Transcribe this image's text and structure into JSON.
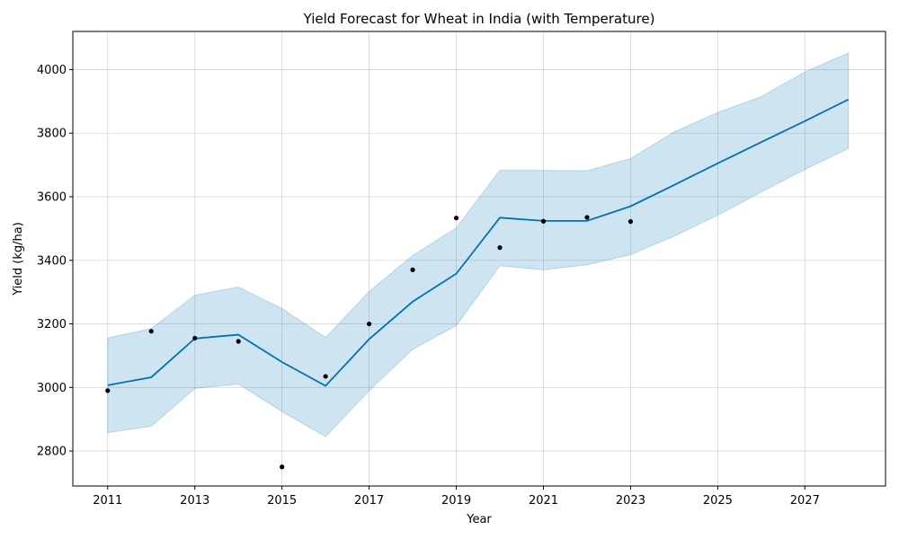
{
  "chart_data": {
    "type": "line",
    "title": "Yield Forecast for Wheat in India (with Temperature)",
    "xlabel": "Year",
    "ylabel": "Yield (kg/ha)",
    "xlim": [
      2010.2,
      2028.85
    ],
    "ylim": [
      2690,
      4120
    ],
    "x_ticks": [
      2011,
      2013,
      2015,
      2017,
      2019,
      2021,
      2023,
      2025,
      2027
    ],
    "y_ticks": [
      2800,
      3000,
      3200,
      3400,
      3600,
      3800,
      4000
    ],
    "grid": true,
    "colors": {
      "forecast": "#0072b2",
      "band": "#0072b2",
      "observed": "#000000"
    },
    "observed": {
      "x": [
        2011,
        2012,
        2013,
        2014,
        2015,
        2016,
        2017,
        2018,
        2019,
        2020,
        2021,
        2022,
        2023
      ],
      "y": [
        2990,
        3177,
        3155,
        3145,
        2750,
        3035,
        3200,
        3370,
        3533,
        3440,
        3523,
        3535,
        3522
      ]
    },
    "forecast": {
      "x": [
        2011,
        2012,
        2013,
        2014,
        2015,
        2016,
        2017,
        2018,
        2019,
        2020,
        2021,
        2022,
        2023,
        2024,
        2025,
        2026,
        2027,
        2028
      ],
      "y": [
        3007,
        3032,
        3154,
        3166,
        3080,
        3005,
        3152,
        3270,
        3358,
        3534,
        3524,
        3524,
        3570,
        3637,
        3705,
        3772,
        3838,
        3906
      ],
      "lower": [
        2858,
        2878,
        2997,
        3011,
        2924,
        2845,
        2990,
        3120,
        3195,
        3383,
        3370,
        3386,
        3418,
        3476,
        3542,
        3615,
        3686,
        3752
      ],
      "upper": [
        3156,
        3185,
        3290,
        3316,
        3248,
        3157,
        3302,
        3415,
        3502,
        3683,
        3683,
        3682,
        3720,
        3804,
        3865,
        3915,
        3993,
        4052
      ]
    }
  }
}
